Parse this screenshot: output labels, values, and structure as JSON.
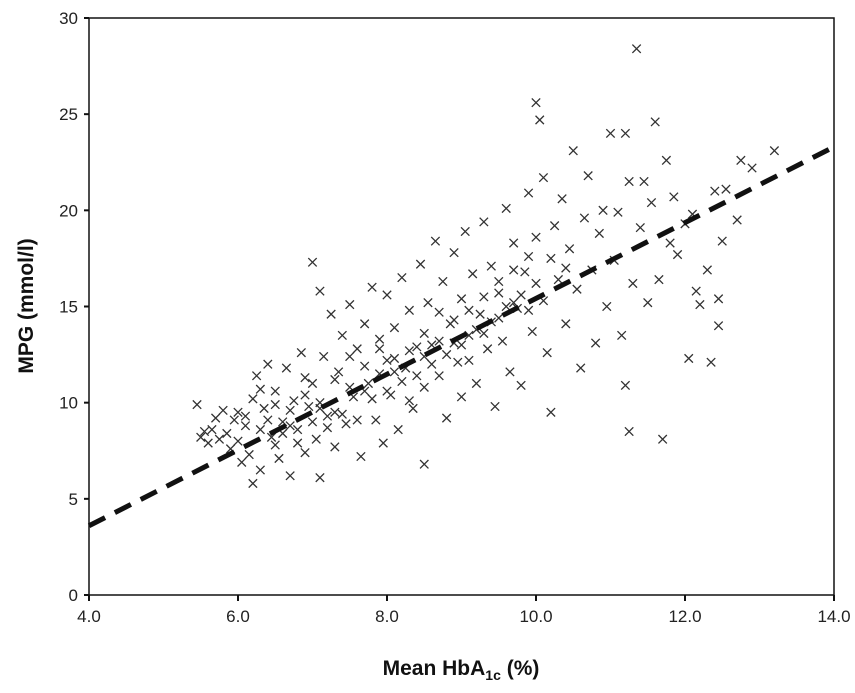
{
  "chart_data": {
    "type": "scatter",
    "title": "",
    "xlabel": {
      "main": "Mean HbA",
      "sub": "1c",
      "suffix": " (%)"
    },
    "ylabel": "MPG (mmol/l)",
    "xlim": [
      4.0,
      14.0
    ],
    "ylim": [
      0,
      30
    ],
    "xticks": [
      4.0,
      6.0,
      8.0,
      10.0,
      12.0,
      14.0
    ],
    "xtick_labels": [
      "4.0",
      "6.0",
      "8.0",
      "10.0",
      "12.0",
      "14.0"
    ],
    "yticks": [
      0,
      5,
      10,
      15,
      20,
      25,
      30
    ],
    "ytick_labels": [
      "0",
      "5",
      "10",
      "15",
      "20",
      "25",
      "30"
    ],
    "grid": false,
    "legend": "none",
    "marker_color": "#333333",
    "regression_line": {
      "style": "dashed",
      "color": "#111111",
      "x": [
        4.0,
        14.0
      ],
      "y": [
        3.6,
        23.3
      ]
    },
    "points": [
      [
        5.45,
        9.9
      ],
      [
        5.5,
        8.2
      ],
      [
        5.55,
        8.5
      ],
      [
        5.6,
        7.9
      ],
      [
        5.65,
        8.6
      ],
      [
        5.7,
        9.2
      ],
      [
        5.75,
        8.1
      ],
      [
        5.8,
        9.6
      ],
      [
        5.85,
        8.4
      ],
      [
        5.9,
        7.6
      ],
      [
        5.95,
        9.1
      ],
      [
        6.0,
        8.0
      ],
      [
        6.0,
        9.5
      ],
      [
        6.05,
        6.9
      ],
      [
        6.1,
        8.8
      ],
      [
        6.15,
        7.3
      ],
      [
        6.2,
        10.2
      ],
      [
        6.2,
        5.8
      ],
      [
        6.25,
        11.4
      ],
      [
        6.3,
        6.5
      ],
      [
        6.35,
        9.7
      ],
      [
        6.4,
        12.0
      ],
      [
        6.45,
        8.2
      ],
      [
        6.5,
        10.6
      ],
      [
        6.55,
        7.1
      ],
      [
        6.6,
        9.0
      ],
      [
        6.65,
        11.8
      ],
      [
        6.7,
        6.2
      ],
      [
        6.75,
        10.1
      ],
      [
        6.8,
        8.6
      ],
      [
        6.85,
        12.6
      ],
      [
        6.9,
        7.4
      ],
      [
        6.95,
        9.8
      ],
      [
        7.0,
        17.3
      ],
      [
        7.0,
        11.0
      ],
      [
        7.05,
        8.1
      ],
      [
        7.1,
        15.8
      ],
      [
        7.1,
        6.1
      ],
      [
        7.15,
        12.4
      ],
      [
        7.2,
        9.3
      ],
      [
        7.25,
        14.6
      ],
      [
        7.3,
        7.7
      ],
      [
        7.35,
        11.6
      ],
      [
        7.4,
        13.5
      ],
      [
        7.45,
        8.9
      ],
      [
        7.5,
        15.1
      ],
      [
        7.55,
        10.3
      ],
      [
        7.6,
        12.8
      ],
      [
        7.65,
        7.2
      ],
      [
        7.7,
        14.1
      ],
      [
        7.75,
        11.0
      ],
      [
        7.8,
        16.0
      ],
      [
        7.85,
        9.1
      ],
      [
        7.9,
        13.3
      ],
      [
        7.95,
        7.9
      ],
      [
        8.0,
        12.2
      ],
      [
        8.0,
        15.6
      ],
      [
        8.05,
        10.4
      ],
      [
        8.1,
        13.9
      ],
      [
        8.15,
        8.6
      ],
      [
        8.2,
        16.5
      ],
      [
        8.25,
        11.8
      ],
      [
        8.3,
        14.8
      ],
      [
        8.35,
        9.7
      ],
      [
        8.4,
        12.9
      ],
      [
        8.45,
        17.2
      ],
      [
        8.5,
        10.8
      ],
      [
        8.5,
        6.8
      ],
      [
        8.55,
        15.2
      ],
      [
        8.6,
        13.0
      ],
      [
        8.65,
        18.4
      ],
      [
        8.7,
        11.4
      ],
      [
        8.75,
        16.3
      ],
      [
        8.8,
        9.2
      ],
      [
        8.85,
        14.1
      ],
      [
        8.9,
        17.8
      ],
      [
        8.95,
        12.1
      ],
      [
        9.0,
        15.4
      ],
      [
        9.0,
        10.3
      ],
      [
        9.05,
        18.9
      ],
      [
        9.1,
        13.5
      ],
      [
        9.15,
        16.7
      ],
      [
        9.2,
        11.0
      ],
      [
        9.25,
        14.6
      ],
      [
        9.3,
        19.4
      ],
      [
        9.35,
        12.8
      ],
      [
        9.4,
        17.1
      ],
      [
        9.45,
        9.8
      ],
      [
        9.5,
        15.7
      ],
      [
        9.55,
        13.2
      ],
      [
        9.6,
        20.1
      ],
      [
        9.65,
        11.6
      ],
      [
        9.7,
        18.3
      ],
      [
        9.75,
        14.9
      ],
      [
        9.8,
        10.9
      ],
      [
        9.85,
        16.8
      ],
      [
        9.9,
        20.9
      ],
      [
        9.95,
        13.7
      ],
      [
        10.0,
        25.6
      ],
      [
        10.0,
        18.6
      ],
      [
        10.05,
        24.7
      ],
      [
        10.1,
        15.3
      ],
      [
        10.1,
        21.7
      ],
      [
        10.15,
        12.6
      ],
      [
        10.2,
        9.5
      ],
      [
        10.25,
        19.2
      ],
      [
        10.3,
        16.4
      ],
      [
        10.35,
        20.6
      ],
      [
        10.4,
        14.1
      ],
      [
        10.45,
        18.0
      ],
      [
        10.5,
        23.1
      ],
      [
        10.55,
        15.9
      ],
      [
        10.6,
        11.8
      ],
      [
        10.65,
        19.6
      ],
      [
        10.7,
        21.8
      ],
      [
        10.75,
        16.9
      ],
      [
        10.8,
        13.1
      ],
      [
        10.85,
        18.8
      ],
      [
        10.9,
        20.0
      ],
      [
        10.95,
        15.0
      ],
      [
        11.0,
        24.0
      ],
      [
        11.05,
        17.4
      ],
      [
        11.1,
        19.9
      ],
      [
        11.15,
        13.5
      ],
      [
        11.2,
        10.9
      ],
      [
        11.2,
        24.0
      ],
      [
        11.25,
        21.5
      ],
      [
        11.25,
        8.5
      ],
      [
        11.3,
        16.2
      ],
      [
        11.35,
        28.4
      ],
      [
        11.4,
        19.1
      ],
      [
        11.45,
        21.5
      ],
      [
        11.5,
        15.2
      ],
      [
        11.55,
        20.4
      ],
      [
        11.6,
        24.6
      ],
      [
        11.65,
        16.4
      ],
      [
        11.7,
        8.1
      ],
      [
        11.75,
        22.6
      ],
      [
        11.8,
        18.3
      ],
      [
        11.85,
        20.7
      ],
      [
        11.9,
        17.7
      ],
      [
        12.0,
        19.3
      ],
      [
        12.05,
        12.3
      ],
      [
        12.1,
        19.8
      ],
      [
        12.15,
        15.8
      ],
      [
        12.2,
        15.1
      ],
      [
        12.3,
        16.9
      ],
      [
        12.35,
        12.1
      ],
      [
        12.4,
        21.0
      ],
      [
        12.45,
        14.0
      ],
      [
        12.45,
        15.4
      ],
      [
        12.5,
        18.4
      ],
      [
        12.55,
        21.1
      ],
      [
        12.7,
        19.5
      ],
      [
        12.75,
        22.6
      ],
      [
        12.9,
        22.2
      ],
      [
        13.2,
        23.1
      ],
      [
        6.3,
        8.6
      ],
      [
        6.4,
        9.1
      ],
      [
        6.5,
        7.8
      ],
      [
        6.6,
        8.4
      ],
      [
        6.7,
        9.6
      ],
      [
        6.8,
        7.9
      ],
      [
        6.9,
        10.4
      ],
      [
        7.0,
        9.0
      ],
      [
        7.1,
        10.0
      ],
      [
        7.2,
        8.7
      ],
      [
        7.3,
        11.2
      ],
      [
        7.4,
        9.4
      ],
      [
        7.5,
        10.8
      ],
      [
        7.6,
        9.1
      ],
      [
        7.7,
        11.9
      ],
      [
        7.8,
        10.2
      ],
      [
        7.9,
        11.5
      ],
      [
        8.0,
        10.6
      ],
      [
        8.1,
        12.3
      ],
      [
        8.2,
        11.1
      ],
      [
        8.3,
        12.7
      ],
      [
        8.4,
        11.4
      ],
      [
        8.5,
        13.6
      ],
      [
        8.6,
        12.0
      ],
      [
        8.7,
        13.2
      ],
      [
        8.8,
        12.5
      ],
      [
        8.9,
        14.3
      ],
      [
        9.0,
        13.0
      ],
      [
        9.1,
        14.8
      ],
      [
        9.2,
        13.8
      ],
      [
        9.3,
        15.5
      ],
      [
        9.4,
        14.2
      ],
      [
        9.5,
        16.3
      ],
      [
        9.6,
        15.0
      ],
      [
        9.7,
        16.9
      ],
      [
        9.8,
        15.6
      ],
      [
        9.9,
        17.6
      ],
      [
        10.0,
        16.2
      ],
      [
        10.2,
        17.5
      ],
      [
        10.4,
        17.0
      ],
      [
        6.1,
        9.3
      ],
      [
        6.3,
        10.7
      ],
      [
        6.5,
        9.9
      ],
      [
        6.7,
        8.8
      ],
      [
        6.9,
        11.3
      ],
      [
        7.1,
        9.7
      ],
      [
        7.3,
        9.5
      ],
      [
        7.5,
        12.4
      ],
      [
        7.7,
        10.6
      ],
      [
        7.9,
        12.8
      ],
      [
        8.1,
        11.6
      ],
      [
        8.3,
        10.1
      ],
      [
        8.5,
        12.4
      ],
      [
        8.7,
        14.7
      ],
      [
        8.9,
        13.1
      ],
      [
        9.1,
        12.2
      ],
      [
        9.3,
        13.6
      ],
      [
        9.5,
        14.4
      ],
      [
        9.7,
        15.2
      ],
      [
        9.9,
        14.8
      ]
    ]
  }
}
